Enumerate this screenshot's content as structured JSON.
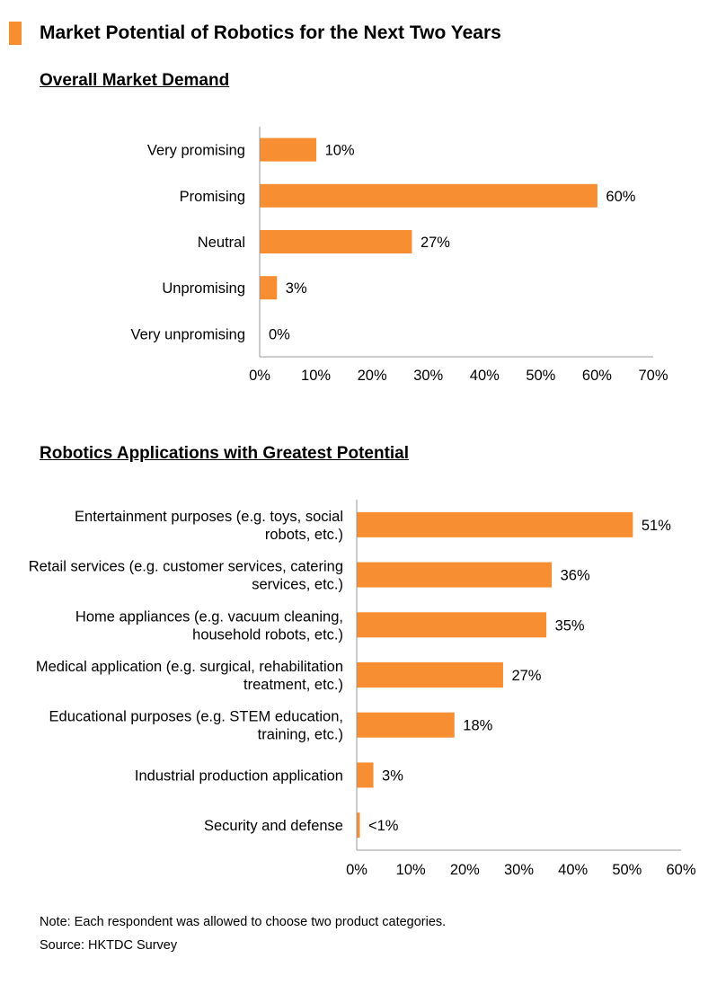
{
  "page": {
    "title": "Market Potential of Robotics for the Next Two Years",
    "accent_color": "#f78e31",
    "note": "Note: Each respondent was allowed to choose two product categories.",
    "source": "Source: HKTDC Survey"
  },
  "chart_data": [
    {
      "type": "bar",
      "orientation": "horizontal",
      "title": "Overall Market Demand",
      "categories": [
        "Very promising",
        "Promising",
        "Neutral",
        "Unpromising",
        "Very unpromising"
      ],
      "values": [
        10,
        60,
        27,
        3,
        0
      ],
      "data_labels": [
        "10%",
        "60%",
        "27%",
        "3%",
        "0%"
      ],
      "xlim": [
        0,
        70
      ],
      "ticks": [
        0,
        10,
        20,
        30,
        40,
        50,
        60,
        70
      ],
      "tick_labels": [
        "0%",
        "10%",
        "20%",
        "30%",
        "40%",
        "50%",
        "60%",
        "70%"
      ],
      "bar_color": "#f78e31",
      "grid": false,
      "legend": "none"
    },
    {
      "type": "bar",
      "orientation": "horizontal",
      "title": "Robotics Applications with Greatest Potential",
      "categories": [
        [
          "Entertainment purposes (e.g. toys, social",
          "robots, etc.)"
        ],
        [
          "Retail services (e.g. customer services, catering",
          "services, etc.)"
        ],
        [
          "Home appliances (e.g. vacuum cleaning,",
          "household robots, etc.)"
        ],
        [
          "Medical application (e.g. surgical, rehabilitation",
          "treatment, etc.)"
        ],
        [
          "Educational purposes (e.g. STEM education,",
          "training, etc.)"
        ],
        [
          "Industrial production application"
        ],
        [
          "Security and defense"
        ]
      ],
      "values": [
        51,
        36,
        35,
        27,
        18,
        3,
        0.5
      ],
      "data_labels": [
        "51%",
        "36%",
        "35%",
        "27%",
        "18%",
        "3%",
        "<1%"
      ],
      "xlim": [
        0,
        60
      ],
      "ticks": [
        0,
        10,
        20,
        30,
        40,
        50,
        60
      ],
      "tick_labels": [
        "0%",
        "10%",
        "20%",
        "30%",
        "40%",
        "50%",
        "60%"
      ],
      "bar_color": "#f78e31",
      "grid": false,
      "legend": "none"
    }
  ]
}
